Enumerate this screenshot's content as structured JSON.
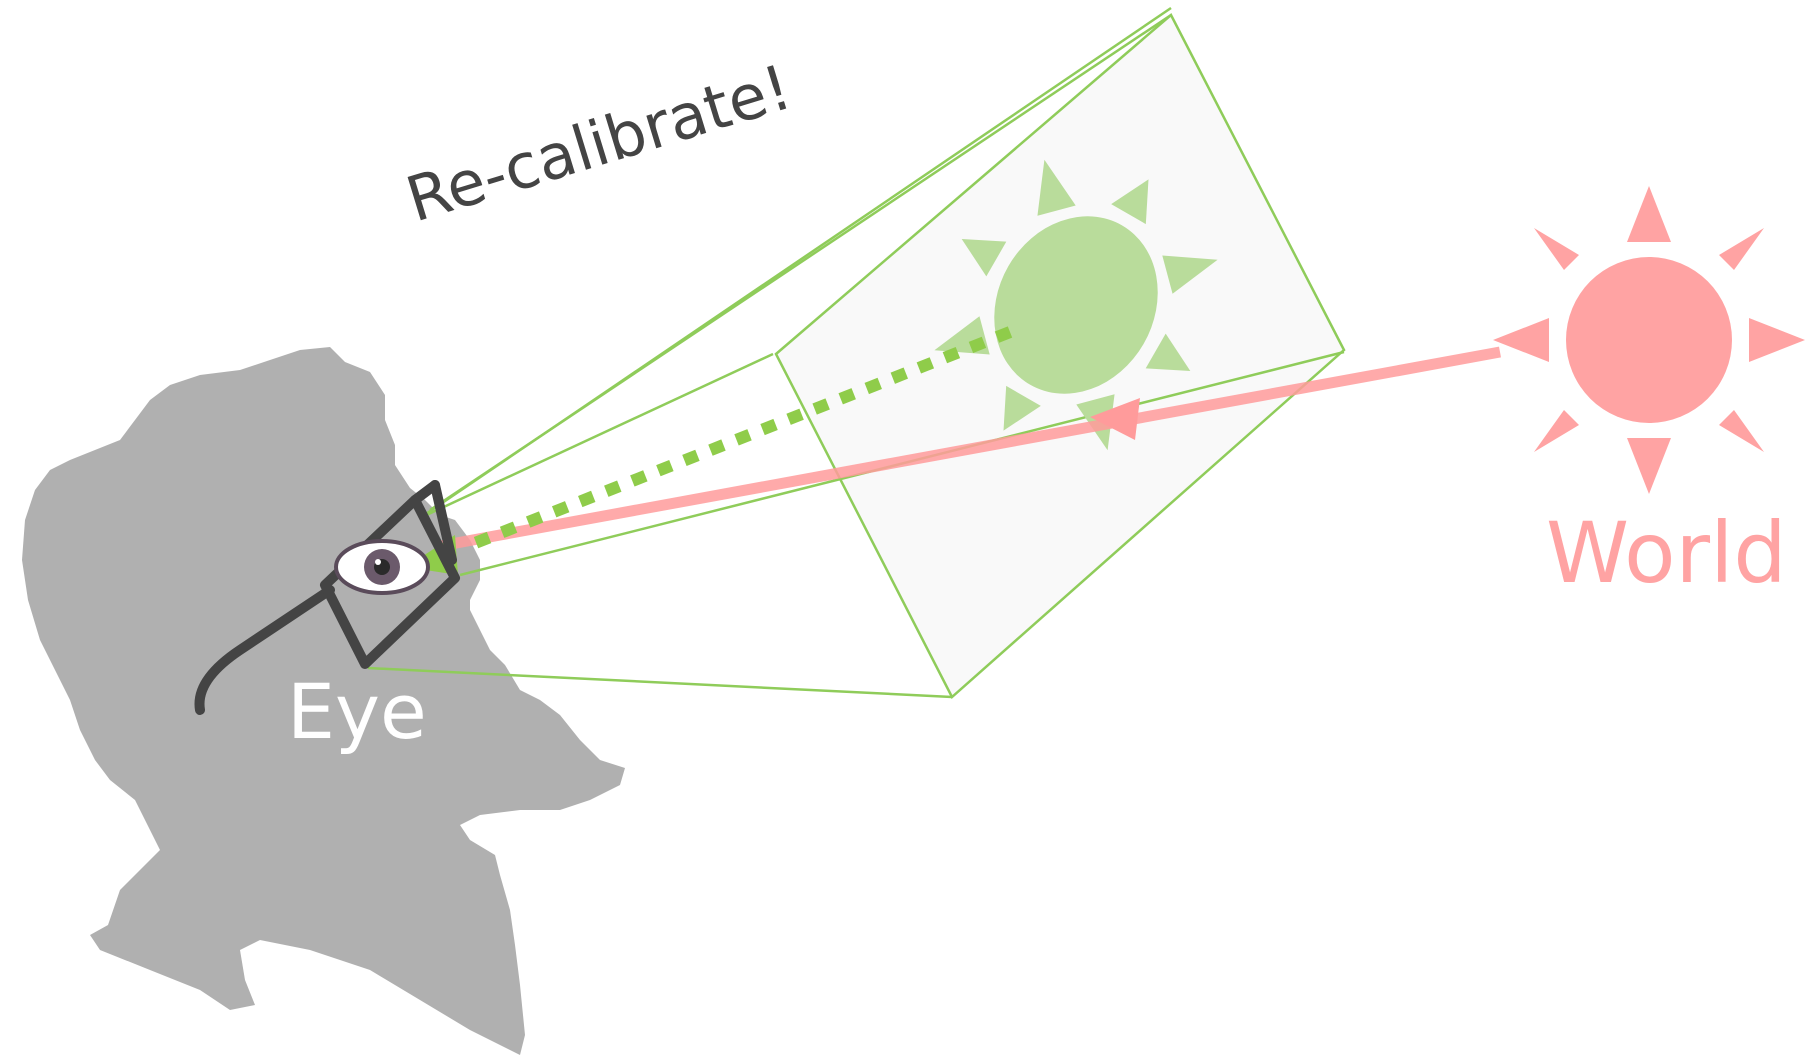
{
  "labels": {
    "recalibrate": "Re-calibrate!",
    "eye": "Eye",
    "world": "World"
  },
  "icons": {
    "head": "head-silhouette-icon",
    "glasses": "ar-glasses-icon",
    "eye": "eye-icon",
    "virtual_sun": "virtual-sun-icon",
    "world_sun": "world-sun-icon"
  },
  "colors": {
    "silhouette": "#b0b0b0",
    "glasses": "#444444",
    "frustum": "#8fcc5a",
    "virtual_plane": "#f9f9f9",
    "virtual_sun": "#b9dc9b",
    "virtual_ray": "#8fcc4a",
    "world_sun": "#ffa3a3",
    "world_ray": "#ff9b9b",
    "eye_label": "#ffffff",
    "recalibrate_label": "#444444"
  }
}
